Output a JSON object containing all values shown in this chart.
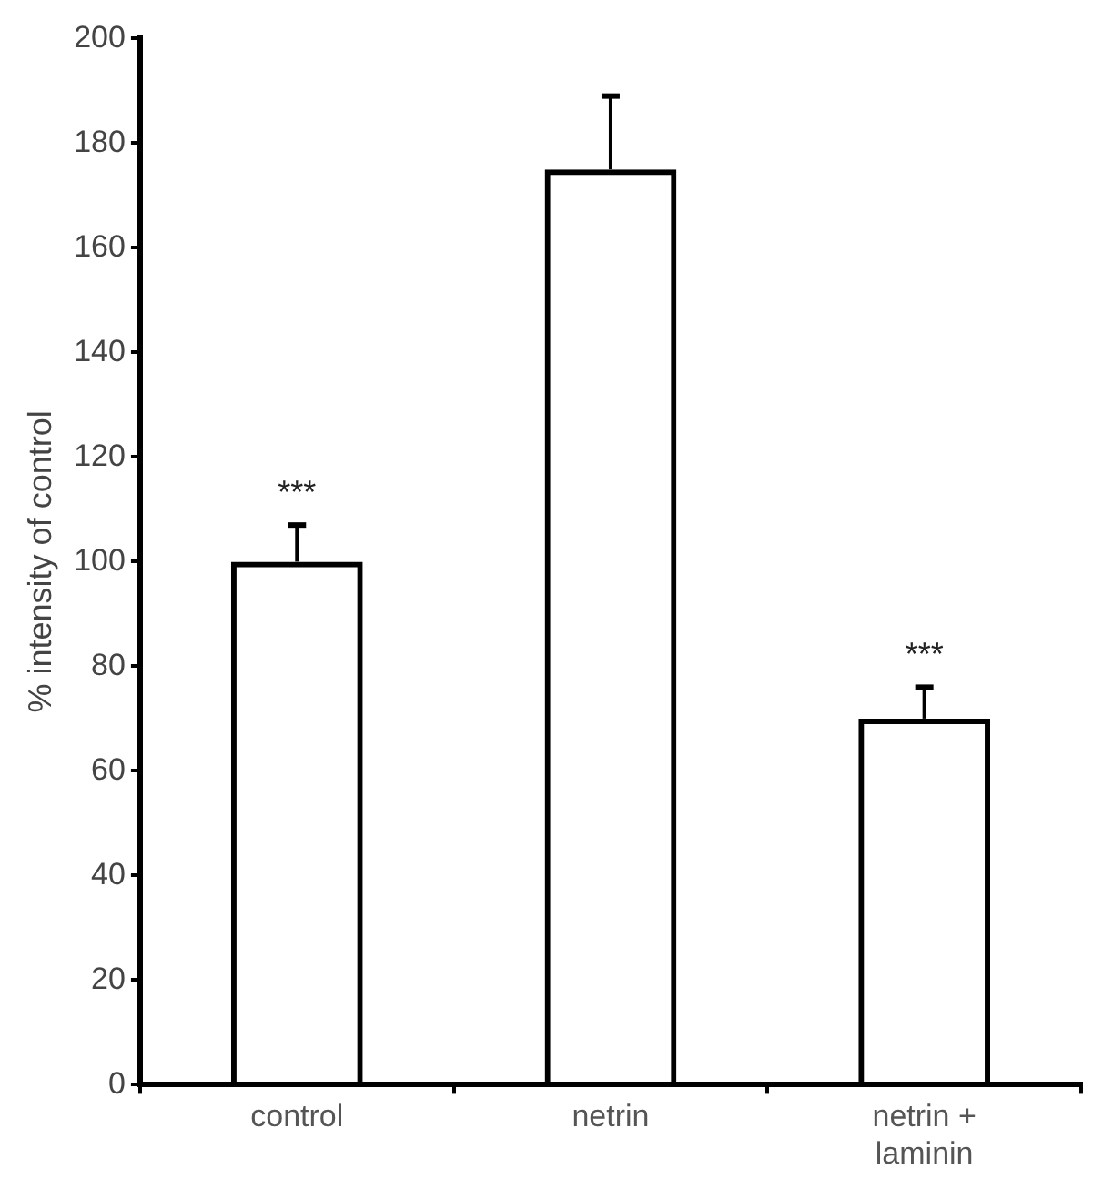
{
  "chart_data": {
    "type": "bar",
    "ylabel": "% intensity of control",
    "categories": [
      "control",
      "netrin",
      "netrin + laminin"
    ],
    "series": [
      {
        "color": "#000000",
        "values": [
          100,
          175,
          70
        ],
        "errors": [
          [
            100,
            107
          ],
          [
            175,
            189
          ],
          [
            70,
            76
          ]
        ]
      }
    ],
    "ylim": [
      0,
      200
    ],
    "yticks": [
      0,
      20,
      40,
      60,
      80,
      100,
      120,
      140,
      160,
      180,
      200
    ],
    "grid": false,
    "legend": false,
    "annotations": [
      {
        "text": "***",
        "x": "control",
        "y": 107
      },
      {
        "text": "***",
        "x": "netrin + laminin",
        "y": 76
      }
    ]
  }
}
